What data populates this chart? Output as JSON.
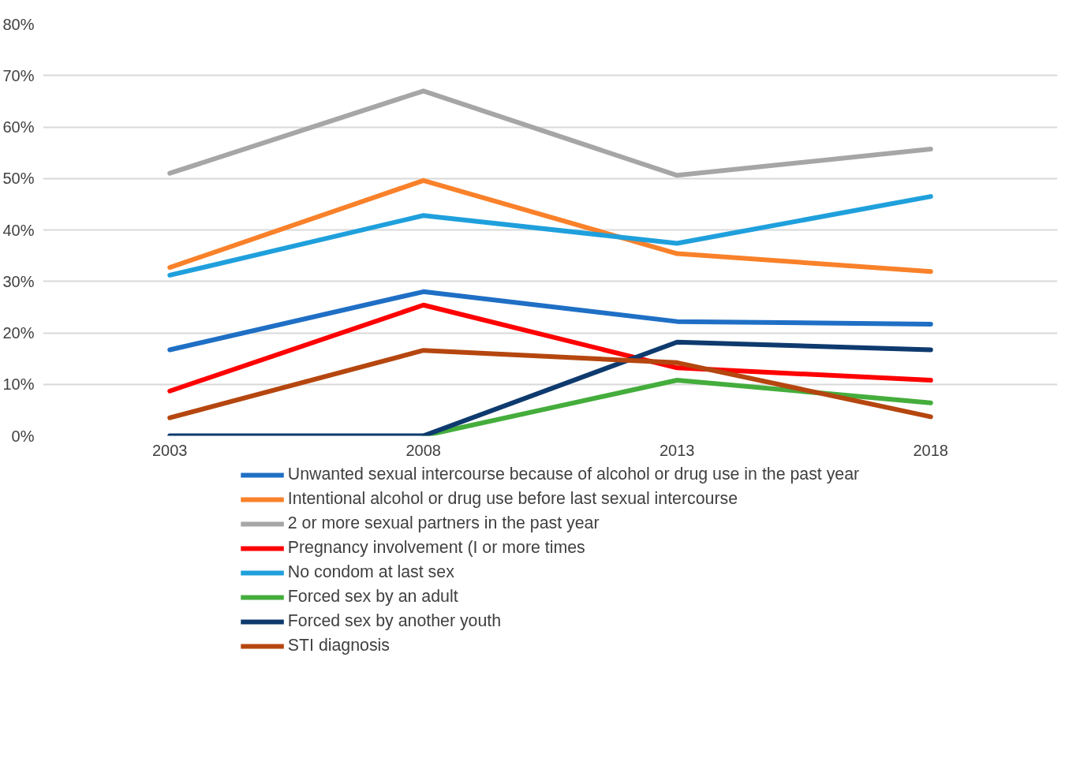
{
  "chart_data": {
    "type": "line",
    "categories": [
      "2003",
      "2008",
      "2013",
      "2018"
    ],
    "ylim": [
      0,
      80
    ],
    "yticks": [
      {
        "value": 0,
        "label": "0%"
      },
      {
        "value": 10,
        "label": "10%"
      },
      {
        "value": 20,
        "label": "20%"
      },
      {
        "value": 30,
        "label": "30%"
      },
      {
        "value": 40,
        "label": "40%"
      },
      {
        "value": 50,
        "label": "50%"
      },
      {
        "value": 60,
        "label": "60%"
      },
      {
        "value": 70,
        "label": "70%"
      },
      {
        "value": 80,
        "label": "80%"
      }
    ],
    "grid": "y",
    "legend": "bottom",
    "marker": "none",
    "line_style": "solid",
    "series": [
      {
        "name": "Unwanted sexual intercourse because of alcohol or drug use in the past year",
        "color": "#1f6fc5",
        "values": [
          16.7,
          28.0,
          22.2,
          21.7
        ]
      },
      {
        "name": "Intentional alcohol or drug use before last sexual intercourse",
        "color": "#f9812a",
        "values": [
          32.7,
          49.6,
          35.4,
          31.9
        ]
      },
      {
        "name": "2 or more sexual partners in the past year",
        "color": "#a6a6a6",
        "values": [
          51.0,
          67.0,
          50.6,
          55.7
        ]
      },
      {
        "name": "Pregnancy involvement (I or more times",
        "color": "#ff0000",
        "values": [
          8.7,
          25.4,
          13.2,
          10.8
        ]
      },
      {
        "name": "No condom at last sex",
        "color": "#1fa0dc",
        "values": [
          31.2,
          42.8,
          37.4,
          46.5
        ]
      },
      {
        "name": "Forced sex by an adult",
        "color": "#44ad3c",
        "values": [
          null,
          0,
          10.8,
          6.4
        ]
      },
      {
        "name": "Forced sex by another youth",
        "color": "#0e3a6e",
        "values": [
          0,
          0,
          18.2,
          16.7
        ]
      },
      {
        "name": "STI diagnosis",
        "color": "#b5460f",
        "values": [
          3.5,
          16.6,
          14.2,
          3.7
        ]
      }
    ]
  }
}
